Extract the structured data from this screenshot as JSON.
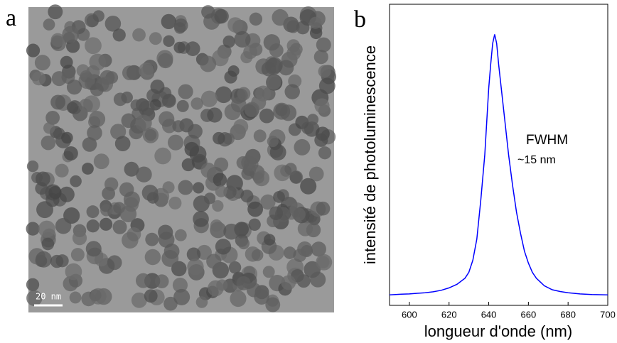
{
  "panel_a": {
    "label": "a",
    "scale_bar": "20 nm"
  },
  "chart_data": {
    "type": "line",
    "panel_label": "b",
    "xlabel": "longueur d'onde (nm)",
    "ylabel": "intensité de photoluminescence",
    "annotations": [
      "FWHM",
      "~15 nm"
    ],
    "x": [
      590,
      596,
      600,
      604,
      608,
      612,
      616,
      620,
      624,
      628,
      630,
      632,
      634,
      636,
      638,
      640,
      641,
      642,
      643,
      644,
      645,
      646,
      648,
      650,
      652,
      654,
      656,
      658,
      660,
      662,
      664,
      668,
      672,
      676,
      680,
      686,
      692,
      700
    ],
    "series": [
      {
        "name": "PL",
        "color": "#0000ff",
        "values": [
          0.035,
          0.037,
          0.038,
          0.04,
          0.042,
          0.045,
          0.05,
          0.058,
          0.07,
          0.09,
          0.11,
          0.15,
          0.22,
          0.35,
          0.5,
          0.72,
          0.8,
          0.87,
          0.9,
          0.87,
          0.8,
          0.74,
          0.62,
          0.5,
          0.4,
          0.31,
          0.24,
          0.18,
          0.14,
          0.11,
          0.09,
          0.065,
          0.052,
          0.046,
          0.042,
          0.038,
          0.036,
          0.035
        ]
      }
    ],
    "xlim": [
      590,
      700
    ],
    "xticks": [
      600,
      620,
      640,
      660,
      680,
      700
    ],
    "ylim": [
      0,
      1
    ]
  }
}
